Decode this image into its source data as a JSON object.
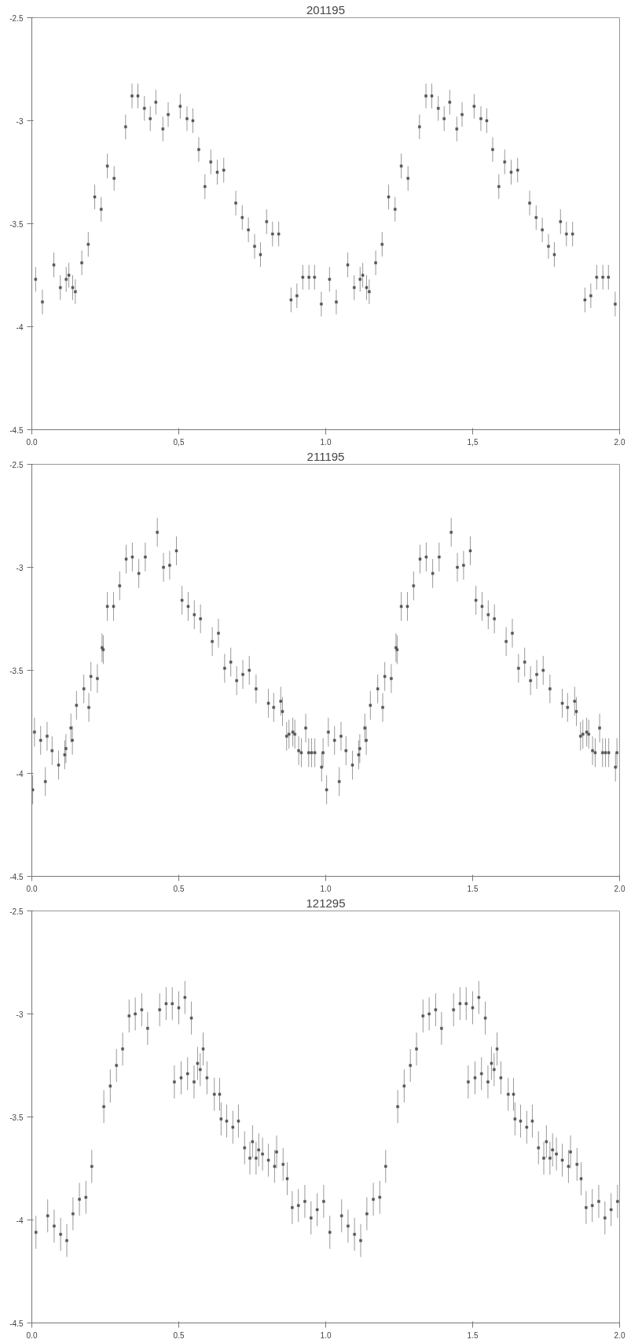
{
  "chart_data": [
    {
      "type": "scatter",
      "title": "201195",
      "marker": "square",
      "color": "#555555",
      "xlim": [
        0,
        2
      ],
      "ylim": [
        -4.5,
        -2.5
      ],
      "xticks": [
        {
          "value": 0,
          "label": "0.0"
        },
        {
          "value": 0.5,
          "label": "0,5"
        },
        {
          "value": 1,
          "label": "1.0"
        },
        {
          "value": 1.5,
          "label": "1,5"
        },
        {
          "value": 2,
          "label": "2.0"
        }
      ],
      "yticks": [
        -2.5,
        -3,
        -3.5,
        -4,
        -4.5
      ],
      "x": [
        0.013,
        0.036,
        0.075,
        0.097,
        0.117,
        0.126,
        0.139,
        0.148,
        0.17,
        0.192,
        0.214,
        0.236,
        0.257,
        0.28,
        0.319,
        0.341,
        0.361,
        0.383,
        0.403,
        0.422,
        0.446,
        0.464,
        0.505,
        0.528,
        0.548,
        0.568,
        0.589,
        0.609,
        0.631,
        0.653,
        0.694,
        0.716,
        0.737,
        0.758,
        0.778,
        0.799,
        0.819,
        0.84,
        0.882,
        0.902,
        0.922,
        0.943,
        0.962,
        0.985,
        1.013,
        1.036,
        1.075,
        1.097,
        1.117,
        1.126,
        1.139,
        1.148,
        1.17,
        1.192,
        1.214,
        1.236,
        1.257,
        1.28,
        1.319,
        1.341,
        1.361,
        1.383,
        1.403,
        1.422,
        1.446,
        1.464,
        1.505,
        1.528,
        1.548,
        1.568,
        1.589,
        1.609,
        1.631,
        1.653,
        1.694,
        1.716,
        1.737,
        1.758,
        1.778,
        1.799,
        1.819,
        1.84,
        1.882,
        1.902,
        1.922,
        1.943,
        1.962,
        1.985
      ],
      "values": [
        -3.77,
        -3.88,
        -3.7,
        -3.81,
        -3.77,
        -3.75,
        -3.81,
        -3.83,
        -3.69,
        -3.6,
        -3.37,
        -3.43,
        -3.22,
        -3.28,
        -3.03,
        -2.88,
        -2.88,
        -2.94,
        -2.99,
        -2.91,
        -3.04,
        -2.97,
        -2.93,
        -2.99,
        -3.0,
        -3.14,
        -3.32,
        -3.2,
        -3.25,
        -3.24,
        -3.4,
        -3.47,
        -3.53,
        -3.61,
        -3.65,
        -3.49,
        -3.55,
        -3.55,
        -3.87,
        -3.85,
        -3.76,
        -3.76,
        -3.76,
        -3.89,
        -3.77,
        -3.88,
        -3.7,
        -3.81,
        -3.77,
        -3.75,
        -3.81,
        -3.83,
        -3.69,
        -3.6,
        -3.37,
        -3.43,
        -3.22,
        -3.28,
        -3.03,
        -2.88,
        -2.88,
        -2.94,
        -2.99,
        -2.91,
        -3.04,
        -2.97,
        -2.93,
        -2.99,
        -3.0,
        -3.14,
        -3.32,
        -3.2,
        -3.25,
        -3.24,
        -3.4,
        -3.47,
        -3.53,
        -3.61,
        -3.65,
        -3.49,
        -3.55,
        -3.55,
        -3.87,
        -3.85,
        -3.76,
        -3.76,
        -3.76,
        -3.89
      ],
      "errors": [
        0.06,
        0.06,
        0.06,
        0.06,
        0.06,
        0.06,
        0.06,
        0.06,
        0.06,
        0.06,
        0.06,
        0.06,
        0.06,
        0.06,
        0.06,
        0.06,
        0.06,
        0.06,
        0.06,
        0.06,
        0.06,
        0.06,
        0.06,
        0.06,
        0.06,
        0.06,
        0.06,
        0.06,
        0.06,
        0.06,
        0.06,
        0.06,
        0.06,
        0.06,
        0.06,
        0.06,
        0.06,
        0.06,
        0.06,
        0.06,
        0.06,
        0.06,
        0.06,
        0.06,
        0.06,
        0.06,
        0.06,
        0.06,
        0.06,
        0.06,
        0.06,
        0.06,
        0.06,
        0.06,
        0.06,
        0.06,
        0.06,
        0.06,
        0.06,
        0.06,
        0.06,
        0.06,
        0.06,
        0.06,
        0.06,
        0.06,
        0.06,
        0.06,
        0.06,
        0.06,
        0.06,
        0.06,
        0.06,
        0.06,
        0.06,
        0.06,
        0.06,
        0.06,
        0.06,
        0.06,
        0.06,
        0.06,
        0.06,
        0.06,
        0.06,
        0.06,
        0.06,
        0.06
      ]
    },
    {
      "type": "scatter",
      "title": "211195",
      "marker": "square",
      "color": "#555555",
      "xlim": [
        0,
        2
      ],
      "ylim": [
        -4.5,
        -2.5
      ],
      "xticks": [
        {
          "value": 0,
          "label": "0.0"
        },
        {
          "value": 0.5,
          "label": "0.5"
        },
        {
          "value": 1,
          "label": "1.0"
        },
        {
          "value": 1.5,
          "label": "1.5"
        },
        {
          "value": 2,
          "label": "2.0"
        }
      ],
      "yticks": [
        -2.5,
        -3,
        -3.5,
        -4,
        -4.5
      ],
      "x": [
        0.003,
        0.009,
        0.03,
        0.046,
        0.052,
        0.069,
        0.091,
        0.112,
        0.116,
        0.133,
        0.138,
        0.152,
        0.177,
        0.194,
        0.201,
        0.223,
        0.239,
        0.243,
        0.257,
        0.278,
        0.299,
        0.321,
        0.342,
        0.364,
        0.386,
        0.427,
        0.448,
        0.469,
        0.492,
        0.511,
        0.532,
        0.553,
        0.574,
        0.614,
        0.635,
        0.656,
        0.677,
        0.697,
        0.718,
        0.74,
        0.763,
        0.805,
        0.823,
        0.847,
        0.853,
        0.867,
        0.875,
        0.888,
        0.895,
        0.908,
        0.917,
        0.932,
        0.942,
        0.952,
        0.963,
        0.986,
        0.991,
        1.003,
        1.009,
        1.03,
        1.046,
        1.052,
        1.069,
        1.091,
        1.112,
        1.116,
        1.133,
        1.138,
        1.152,
        1.177,
        1.194,
        1.201,
        1.223,
        1.239,
        1.243,
        1.257,
        1.278,
        1.299,
        1.321,
        1.342,
        1.364,
        1.386,
        1.427,
        1.448,
        1.469,
        1.492,
        1.511,
        1.532,
        1.553,
        1.574,
        1.614,
        1.635,
        1.656,
        1.677,
        1.697,
        1.718,
        1.74,
        1.763,
        1.805,
        1.823,
        1.847,
        1.853,
        1.867,
        1.875,
        1.888,
        1.895,
        1.908,
        1.917,
        1.932,
        1.942,
        1.952,
        1.963,
        1.986,
        1.991
      ],
      "values": [
        -4.08,
        -3.8,
        -3.84,
        -4.04,
        -3.82,
        -3.89,
        -3.96,
        -3.91,
        -3.88,
        -3.78,
        -3.84,
        -3.67,
        -3.59,
        -3.68,
        -3.53,
        -3.54,
        -3.39,
        -3.4,
        -3.19,
        -3.19,
        -3.09,
        -2.96,
        -2.95,
        -3.03,
        -2.95,
        -2.83,
        -3.0,
        -2.99,
        -2.92,
        -3.16,
        -3.19,
        -3.23,
        -3.25,
        -3.36,
        -3.32,
        -3.49,
        -3.46,
        -3.55,
        -3.52,
        -3.5,
        -3.59,
        -3.66,
        -3.68,
        -3.65,
        -3.7,
        -3.82,
        -3.81,
        -3.8,
        -3.81,
        -3.89,
        -3.9,
        -3.78,
        -3.9,
        -3.9,
        -3.9,
        -3.97,
        -3.9,
        -4.08,
        -3.8,
        -3.84,
        -4.04,
        -3.82,
        -3.89,
        -3.96,
        -3.91,
        -3.88,
        -3.78,
        -3.84,
        -3.67,
        -3.59,
        -3.68,
        -3.53,
        -3.54,
        -3.39,
        -3.4,
        -3.19,
        -3.19,
        -3.09,
        -2.96,
        -2.95,
        -3.03,
        -2.95,
        -2.83,
        -3.0,
        -2.99,
        -2.92,
        -3.16,
        -3.19,
        -3.23,
        -3.25,
        -3.36,
        -3.32,
        -3.49,
        -3.46,
        -3.55,
        -3.52,
        -3.5,
        -3.59,
        -3.66,
        -3.68,
        -3.65,
        -3.7,
        -3.82,
        -3.81,
        -3.8,
        -3.81,
        -3.89,
        -3.9,
        -3.78,
        -3.9,
        -3.9,
        -3.9,
        -3.97,
        -3.9
      ],
      "errors": [
        0.07,
        0.07,
        0.07,
        0.07,
        0.07,
        0.07,
        0.07,
        0.07,
        0.07,
        0.07,
        0.07,
        0.07,
        0.07,
        0.07,
        0.07,
        0.07,
        0.07,
        0.07,
        0.07,
        0.07,
        0.07,
        0.07,
        0.07,
        0.07,
        0.07,
        0.07,
        0.07,
        0.07,
        0.07,
        0.07,
        0.07,
        0.07,
        0.07,
        0.07,
        0.07,
        0.07,
        0.07,
        0.07,
        0.07,
        0.07,
        0.07,
        0.07,
        0.07,
        0.07,
        0.07,
        0.07,
        0.07,
        0.07,
        0.07,
        0.07,
        0.07,
        0.07,
        0.07,
        0.07,
        0.07,
        0.07,
        0.07,
        0.07,
        0.07,
        0.07,
        0.07,
        0.07,
        0.07,
        0.07,
        0.07,
        0.07,
        0.07,
        0.07,
        0.07,
        0.07,
        0.07,
        0.07,
        0.07,
        0.07,
        0.07,
        0.07,
        0.07,
        0.07,
        0.07,
        0.07,
        0.07,
        0.07,
        0.07,
        0.07,
        0.07,
        0.07,
        0.07,
        0.07,
        0.07,
        0.07,
        0.07,
        0.07,
        0.07,
        0.07,
        0.07,
        0.07,
        0.07,
        0.07,
        0.07,
        0.07,
        0.07,
        0.07,
        0.07,
        0.07,
        0.07,
        0.07,
        0.07,
        0.07,
        0.07,
        0.07,
        0.07,
        0.07,
        0.07,
        0.07
      ]
    },
    {
      "type": "scatter",
      "title": "121295",
      "marker": "square",
      "color": "#555555",
      "xlim": [
        0,
        2
      ],
      "ylim": [
        -4.5,
        -2.5
      ],
      "xticks": [
        {
          "value": 0,
          "label": "0.0"
        },
        {
          "value": 0.5,
          "label": "0.5"
        },
        {
          "value": 1,
          "label": "1.0"
        },
        {
          "value": 1.5,
          "label": "1.5"
        },
        {
          "value": 2,
          "label": "2.0"
        }
      ],
      "yticks": [
        -2.5,
        -3,
        -3.5,
        -4,
        -4.5
      ],
      "x": [
        0.014,
        0.054,
        0.076,
        0.098,
        0.119,
        0.14,
        0.162,
        0.184,
        0.204,
        0.245,
        0.267,
        0.288,
        0.309,
        0.331,
        0.352,
        0.374,
        0.394,
        0.435,
        0.457,
        0.478,
        0.5,
        0.521,
        0.543,
        0.485,
        0.508,
        0.53,
        0.552,
        0.564,
        0.573,
        0.583,
        0.596,
        0.621,
        0.639,
        0.644,
        0.663,
        0.684,
        0.703,
        0.724,
        0.742,
        0.751,
        0.763,
        0.772,
        0.785,
        0.805,
        0.826,
        0.833,
        0.855,
        0.869,
        0.886,
        0.907,
        0.929,
        0.95,
        0.971,
        0.993,
        1.014,
        1.054,
        1.076,
        1.098,
        1.119,
        1.14,
        1.162,
        1.184,
        1.204,
        1.245,
        1.267,
        1.288,
        1.309,
        1.331,
        1.352,
        1.374,
        1.394,
        1.435,
        1.457,
        1.478,
        1.5,
        1.521,
        1.543,
        1.485,
        1.508,
        1.53,
        1.552,
        1.564,
        1.573,
        1.583,
        1.596,
        1.621,
        1.639,
        1.644,
        1.663,
        1.684,
        1.703,
        1.724,
        1.742,
        1.751,
        1.763,
        1.772,
        1.785,
        1.805,
        1.826,
        1.833,
        1.855,
        1.869,
        1.886,
        1.907,
        1.929,
        1.95,
        1.971,
        1.993
      ],
      "values": [
        -4.06,
        -3.98,
        -4.03,
        -4.07,
        -4.1,
        -3.97,
        -3.9,
        -3.89,
        -3.74,
        -3.45,
        -3.35,
        -3.25,
        -3.17,
        -3.01,
        -3.0,
        -2.98,
        -3.07,
        -2.98,
        -2.95,
        -2.95,
        -2.97,
        -2.92,
        -3.02,
        -3.33,
        -3.31,
        -3.29,
        -3.33,
        -3.24,
        -3.27,
        -3.17,
        -3.31,
        -3.39,
        -3.39,
        -3.51,
        -3.52,
        -3.55,
        -3.52,
        -3.65,
        -3.7,
        -3.62,
        -3.7,
        -3.66,
        -3.68,
        -3.71,
        -3.74,
        -3.67,
        -3.73,
        -3.8,
        -3.94,
        -3.93,
        -3.91,
        -3.99,
        -3.95,
        -3.91,
        -4.06,
        -3.98,
        -4.03,
        -4.07,
        -4.1,
        -3.97,
        -3.9,
        -3.89,
        -3.74,
        -3.45,
        -3.35,
        -3.25,
        -3.17,
        -3.01,
        -3.0,
        -2.98,
        -3.07,
        -2.98,
        -2.95,
        -2.95,
        -2.97,
        -2.92,
        -3.02,
        -3.33,
        -3.31,
        -3.29,
        -3.33,
        -3.24,
        -3.27,
        -3.17,
        -3.31,
        -3.39,
        -3.39,
        -3.51,
        -3.52,
        -3.55,
        -3.52,
        -3.65,
        -3.7,
        -3.62,
        -3.7,
        -3.66,
        -3.68,
        -3.71,
        -3.74,
        -3.67,
        -3.73,
        -3.8,
        -3.94,
        -3.93,
        -3.91,
        -3.99,
        -3.95,
        -3.91
      ],
      "errors": [
        0.08,
        0.08,
        0.08,
        0.08,
        0.08,
        0.08,
        0.08,
        0.08,
        0.08,
        0.08,
        0.08,
        0.08,
        0.08,
        0.08,
        0.08,
        0.08,
        0.08,
        0.08,
        0.08,
        0.08,
        0.08,
        0.08,
        0.08,
        0.08,
        0.08,
        0.08,
        0.08,
        0.08,
        0.08,
        0.08,
        0.08,
        0.08,
        0.08,
        0.08,
        0.08,
        0.08,
        0.08,
        0.08,
        0.08,
        0.08,
        0.08,
        0.08,
        0.08,
        0.08,
        0.08,
        0.08,
        0.08,
        0.08,
        0.08,
        0.08,
        0.08,
        0.08,
        0.08,
        0.08,
        0.08,
        0.08,
        0.08,
        0.08,
        0.08,
        0.08,
        0.08,
        0.08,
        0.08,
        0.08,
        0.08,
        0.08,
        0.08,
        0.08,
        0.08,
        0.08,
        0.08,
        0.08,
        0.08,
        0.08,
        0.08,
        0.08,
        0.08,
        0.08,
        0.08,
        0.08,
        0.08,
        0.08,
        0.08,
        0.08,
        0.08,
        0.08,
        0.08,
        0.08,
        0.08,
        0.08,
        0.08,
        0.08,
        0.08,
        0.08,
        0.08,
        0.08,
        0.08,
        0.08,
        0.08,
        0.08,
        0.08,
        0.08,
        0.08,
        0.08,
        0.08,
        0.08,
        0.08,
        0.08
      ]
    }
  ]
}
